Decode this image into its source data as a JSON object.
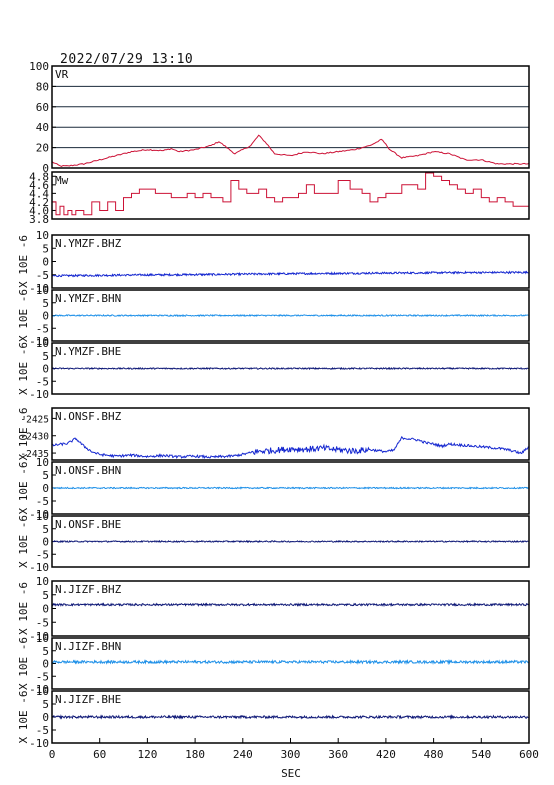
{
  "timestamp": "2022/07/29 13:10",
  "x_axis": {
    "label": "SEC",
    "ticks": [
      "0",
      "60",
      "120",
      "180",
      "240",
      "300",
      "360",
      "420",
      "480",
      "540",
      "600"
    ]
  },
  "colors": {
    "frame": "#000000",
    "red": "#cc1236",
    "blue": "#1628d0",
    "light_blue": "#1e90e8",
    "navy": "#101a78",
    "grid": "#1a2a3a"
  },
  "chart_data": [
    {
      "type": "line",
      "label": "VR",
      "ylim": [
        0,
        100
      ],
      "yticks": [
        "0",
        "20",
        "40",
        "60",
        "80",
        "100"
      ],
      "grid": true,
      "color": "red",
      "x": [
        0,
        10,
        20,
        40,
        60,
        80,
        100,
        120,
        140,
        150,
        160,
        180,
        200,
        210,
        220,
        230,
        240,
        250,
        260,
        270,
        280,
        300,
        320,
        340,
        360,
        380,
        400,
        415,
        425,
        440,
        460,
        480,
        500,
        520,
        540,
        560,
        580,
        600
      ],
      "values": [
        6,
        2,
        2,
        4,
        8,
        12,
        16,
        18,
        17,
        19,
        16,
        18,
        22,
        26,
        20,
        14,
        18,
        22,
        32,
        24,
        14,
        12,
        16,
        14,
        16,
        18,
        22,
        28,
        18,
        10,
        12,
        16,
        14,
        8,
        8,
        4,
        4,
        4
      ]
    },
    {
      "type": "line",
      "label": "Mw",
      "ylim": [
        3.8,
        4.9
      ],
      "yticks": [
        "3.8",
        "4.0",
        "4.2",
        "4.4",
        "4.6",
        "4.8"
      ],
      "grid": false,
      "color": "red",
      "x": [
        0,
        5,
        10,
        15,
        20,
        25,
        30,
        40,
        50,
        60,
        70,
        80,
        90,
        100,
        110,
        130,
        150,
        170,
        180,
        190,
        200,
        215,
        225,
        235,
        245,
        260,
        270,
        280,
        290,
        300,
        310,
        320,
        330,
        345,
        360,
        375,
        390,
        400,
        410,
        420,
        440,
        460,
        470,
        480,
        490,
        500,
        510,
        520,
        530,
        540,
        550,
        560,
        570,
        580,
        590,
        600
      ],
      "values": [
        4.2,
        3.9,
        4.1,
        3.9,
        4.0,
        3.9,
        4.0,
        3.9,
        4.2,
        4.0,
        4.2,
        4.0,
        4.3,
        4.4,
        4.5,
        4.4,
        4.3,
        4.4,
        4.3,
        4.4,
        4.3,
        4.2,
        4.7,
        4.5,
        4.4,
        4.5,
        4.3,
        4.2,
        4.3,
        4.3,
        4.4,
        4.6,
        4.4,
        4.4,
        4.7,
        4.5,
        4.4,
        4.2,
        4.3,
        4.4,
        4.6,
        4.5,
        4.9,
        4.8,
        4.7,
        4.6,
        4.5,
        4.4,
        4.5,
        4.3,
        4.2,
        4.3,
        4.2,
        4.1,
        4.1,
        4.0
      ]
    },
    {
      "type": "line",
      "label": "N.YMZF.BHZ",
      "ylim": [
        -10,
        10
      ],
      "yticks": [
        "-10",
        "-5",
        "0",
        "5",
        "10"
      ],
      "unit": "X 10E -6",
      "color": "blue",
      "x": [
        0,
        100,
        200,
        300,
        400,
        500,
        600
      ],
      "values": [
        -5.4,
        -5.1,
        -4.9,
        -4.6,
        -4.4,
        -4.2,
        -4.1
      ]
    },
    {
      "type": "line",
      "label": "N.YMZF.BHN",
      "ylim": [
        -10,
        10
      ],
      "yticks": [
        "-10",
        "-5",
        "0",
        "5",
        "10"
      ],
      "unit": "X 10E -6",
      "color": "light_blue",
      "x": [
        0,
        600
      ],
      "values": [
        0,
        0
      ]
    },
    {
      "type": "line",
      "label": "N.YMZF.BHE",
      "ylim": [
        -10,
        10
      ],
      "yticks": [
        "-10",
        "-5",
        "0",
        "5",
        "10"
      ],
      "unit": "X 10E -6",
      "color": "navy",
      "x": [
        0,
        600
      ],
      "values": [
        0,
        0
      ]
    },
    {
      "type": "line",
      "label": "N.ONSF.BHZ",
      "ylim": [
        -2437,
        -2422
      ],
      "yticks": [
        "-2435",
        "-2430",
        "-2425"
      ],
      "unit": "X 10E -6",
      "color": "blue",
      "x": [
        0,
        20,
        30,
        40,
        50,
        60,
        80,
        100,
        120,
        140,
        160,
        180,
        200,
        230,
        260,
        280,
        300,
        320,
        340,
        360,
        380,
        400,
        420,
        430,
        440,
        450,
        460,
        470,
        480,
        490,
        500,
        520,
        540,
        560,
        570,
        580,
        590,
        600
      ],
      "values": [
        -2432.8,
        -2432.2,
        -2430.8,
        -2433,
        -2434.6,
        -2435.4,
        -2435.9,
        -2435.6,
        -2436.0,
        -2435.7,
        -2436.1,
        -2435.9,
        -2436.2,
        -2435.8,
        -2434.5,
        -2434.2,
        -2433.8,
        -2433.9,
        -2433.6,
        -2434.0,
        -2434.4,
        -2434.0,
        -2434.6,
        -2434.2,
        -2430.6,
        -2430.9,
        -2431.2,
        -2432.0,
        -2432.4,
        -2433.0,
        -2432.4,
        -2432.8,
        -2433.2,
        -2433.6,
        -2433.9,
        -2434.4,
        -2435.1,
        -2433.2
      ]
    },
    {
      "type": "line",
      "label": "N.ONSF.BHN",
      "ylim": [
        -10,
        10
      ],
      "yticks": [
        "-10",
        "-5",
        "0",
        "5",
        "10"
      ],
      "unit": "X 10E -6",
      "color": "light_blue",
      "x": [
        0,
        600
      ],
      "values": [
        0,
        0
      ]
    },
    {
      "type": "line",
      "label": "N.ONSF.BHE",
      "ylim": [
        -10,
        10
      ],
      "yticks": [
        "-10",
        "-5",
        "0",
        "5",
        "10"
      ],
      "unit": "X 10E -6",
      "color": "navy",
      "x": [
        0,
        600
      ],
      "values": [
        0,
        0
      ]
    },
    {
      "type": "line",
      "label": "N.JIZF.BHZ",
      "ylim": [
        -10,
        10
      ],
      "yticks": [
        "-10",
        "-5",
        "0",
        "5",
        "10"
      ],
      "unit": "X 10E -6",
      "color": "navy",
      "x": [
        0,
        600
      ],
      "values": [
        1.4,
        1.4
      ]
    },
    {
      "type": "line",
      "label": "N.JIZF.BHN",
      "ylim": [
        -10,
        10
      ],
      "yticks": [
        "-10",
        "-5",
        "0",
        "5",
        "10"
      ],
      "unit": "X 10E -6",
      "color": "light_blue",
      "x": [
        0,
        600
      ],
      "values": [
        0.6,
        0.6
      ]
    },
    {
      "type": "line",
      "label": "N.JIZF.BHE",
      "ylim": [
        -10,
        10
      ],
      "yticks": [
        "-10",
        "-5",
        "0",
        "5",
        "10"
      ],
      "unit": "X 10E -6",
      "color": "navy",
      "x": [
        0,
        600
      ],
      "values": [
        0,
        0
      ]
    }
  ]
}
